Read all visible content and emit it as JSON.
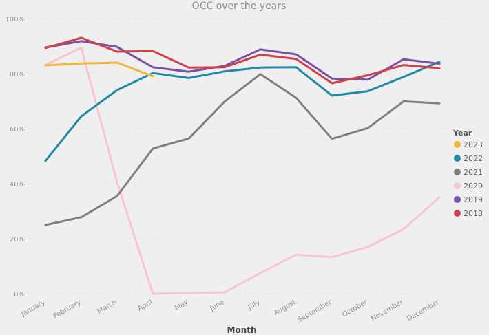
{
  "chart_data": {
    "type": "line",
    "title": "OCC over the years",
    "xlabel": "Month",
    "ylabel": "",
    "ylim": [
      0,
      100
    ],
    "y_ticks": [
      {
        "value": 0,
        "label": "0%"
      },
      {
        "value": 20,
        "label": "20%"
      },
      {
        "value": 40,
        "label": "40%"
      },
      {
        "value": 60,
        "label": "60%"
      },
      {
        "value": 80,
        "label": "80%"
      },
      {
        "value": 100,
        "label": "100%"
      }
    ],
    "categories": [
      "January",
      "February",
      "March",
      "April",
      "May",
      "June",
      "July",
      "August",
      "September",
      "October",
      "November",
      "December"
    ],
    "legend": {
      "title": "Year",
      "position": "right"
    },
    "series": [
      {
        "name": "2023",
        "color": "#f2b632",
        "values": [
          83,
          83.7,
          84,
          79,
          null,
          null,
          null,
          null,
          null,
          null,
          null,
          null
        ]
      },
      {
        "name": "2022",
        "color": "#1f8aa6",
        "values": [
          48.3,
          64.5,
          74,
          80.2,
          78.4,
          80.8,
          82.2,
          82.3,
          72,
          73.6,
          78.8,
          84.3
        ]
      },
      {
        "name": "2021",
        "color": "#7f7f7f",
        "values": [
          25,
          27.8,
          35.5,
          52.8,
          56.4,
          69.8,
          79.8,
          71.2,
          56.3,
          60.2,
          69.9,
          69.2
        ]
      },
      {
        "name": "2020",
        "color": "#f7c4d2",
        "values": [
          83.2,
          89.4,
          40.5,
          0,
          0.3,
          0.5,
          7.5,
          14.2,
          13.3,
          17,
          23.5,
          35
        ]
      },
      {
        "name": "2019",
        "color": "#7b4fa8",
        "values": [
          89.5,
          91.8,
          89.7,
          82.3,
          80.7,
          82.8,
          88.8,
          87,
          78.2,
          77.8,
          85.2,
          83.6
        ]
      },
      {
        "name": "2018",
        "color": "#d0404a",
        "values": [
          89.3,
          93,
          88,
          88.2,
          82.2,
          82.3,
          86.9,
          85.3,
          76.5,
          79.4,
          83.1,
          82
        ]
      }
    ]
  }
}
